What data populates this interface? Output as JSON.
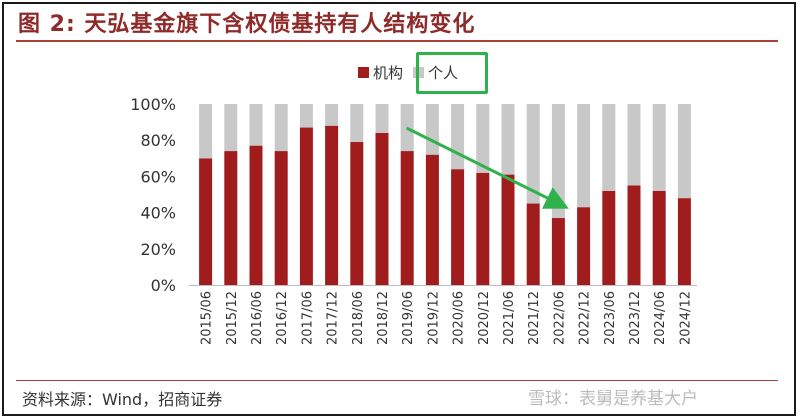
{
  "title": "图 2:  天弘基金旗下含权债基持有人结构变化",
  "source": "资料来源：Wind，招商证券",
  "watermark": "雪球：表舅是养基大户",
  "colors": {
    "institution": "#a11d1d",
    "individual": "#c8c8c8",
    "title": "#8e2a2a",
    "arrow": "#2fb24c"
  },
  "chart_data": {
    "type": "bar",
    "stacked": true,
    "categories": [
      "2015/06",
      "2015/12",
      "2016/06",
      "2016/12",
      "2017/06",
      "2017/12",
      "2018/06",
      "2018/12",
      "2019/06",
      "2019/12",
      "2020/06",
      "2020/12",
      "2021/06",
      "2021/12",
      "2022/06",
      "2022/12",
      "2023/06",
      "2023/12",
      "2024/06",
      "2024/12"
    ],
    "series": [
      {
        "name": "机构",
        "values": [
          70,
          74,
          77,
          74,
          87,
          88,
          79,
          84,
          74,
          72,
          64,
          62,
          61,
          45,
          37,
          43,
          52,
          55,
          52,
          48
        ]
      },
      {
        "name": "个人",
        "values": [
          30,
          26,
          23,
          26,
          13,
          12,
          21,
          16,
          26,
          28,
          36,
          38,
          39,
          55,
          63,
          57,
          48,
          45,
          48,
          52
        ]
      }
    ],
    "yticks": [
      "0%",
      "20%",
      "40%",
      "60%",
      "80%",
      "100%"
    ],
    "ylim": [
      0,
      100
    ],
    "legend": "top-center",
    "annotation": "green arrow pointing down from 2018/12 toward 2022/06; green box around legend entry 个人"
  }
}
